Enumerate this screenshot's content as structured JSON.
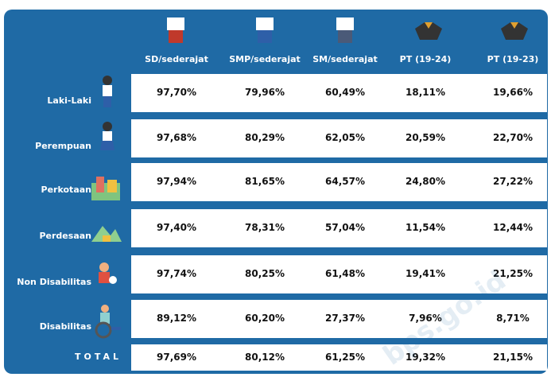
{
  "table": {
    "columns": [
      "SD/sederajat",
      "SMP/sederajat",
      "SM/sederajat",
      "PT (19-24)",
      "PT (19-23)"
    ],
    "rows": [
      {
        "label": "Laki-Laki",
        "values": [
          "97,70%",
          "79,96%",
          "60,49%",
          "18,11%",
          "19,66%"
        ]
      },
      {
        "label": "Perempuan",
        "values": [
          "97,68%",
          "80,29%",
          "62,05%",
          "20,59%",
          "22,70%"
        ]
      },
      {
        "label": "Perkotaan",
        "values": [
          "97,94%",
          "81,65%",
          "64,57%",
          "24,80%",
          "27,22%"
        ]
      },
      {
        "label": "Perdesaan",
        "values": [
          "97,40%",
          "78,31%",
          "57,04%",
          "11,54%",
          "12,44%"
        ]
      },
      {
        "label": "Non Disabilitas",
        "values": [
          "97,74%",
          "80,25%",
          "61,48%",
          "19,41%",
          "21,25%"
        ]
      },
      {
        "label": "Disabilitas",
        "values": [
          "89,12%",
          "60,20%",
          "27,37%",
          "7,96%",
          "8,71%"
        ]
      }
    ],
    "total": {
      "label": "TOTAL",
      "values": [
        "97,69%",
        "80,12%",
        "61,25%",
        "19,32%",
        "21,15%"
      ]
    },
    "watermark": "bps.go.id"
  }
}
